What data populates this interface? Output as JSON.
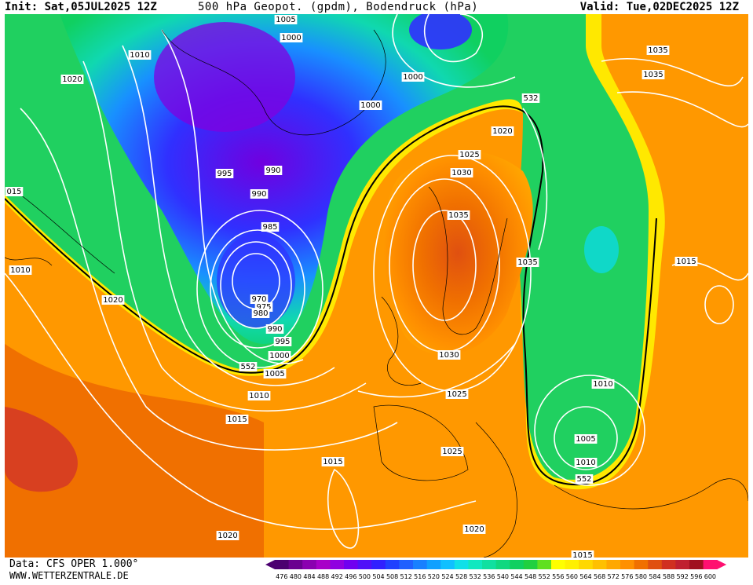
{
  "header": {
    "init": "Init: Sat,05JUL2025 12Z",
    "title": "500 hPa Geopot. (gpdm), Bodendruck (hPa)",
    "valid": "Valid: Tue,02DEC2025 12Z"
  },
  "footer": {
    "source": "Data: CFS OPER 1.000°",
    "site": "WWW.WETTERZENTRALE.DE"
  },
  "legend": {
    "values": [
      "476",
      "480",
      "484",
      "488",
      "492",
      "496",
      "500",
      "504",
      "508",
      "512",
      "516",
      "520",
      "524",
      "528",
      "532",
      "536",
      "540",
      "544",
      "548",
      "552",
      "556",
      "560",
      "564",
      "568",
      "572",
      "576",
      "580",
      "584",
      "588",
      "592",
      "596",
      "600"
    ],
    "colors": [
      "#4b0070",
      "#6a0090",
      "#8a00b0",
      "#a800c8",
      "#9000e0",
      "#7000f0",
      "#5010f8",
      "#3020ff",
      "#2040ff",
      "#2060ff",
      "#1880ff",
      "#10a0ff",
      "#10c0ff",
      "#10e0e8",
      "#10e8c0",
      "#10e0a0",
      "#10d880",
      "#10d060",
      "#20d040",
      "#60e020",
      "#ffff00",
      "#fff000",
      "#ffd800",
      "#ffc000",
      "#ffa800",
      "#ff9000",
      "#f07000",
      "#e05010",
      "#d03020",
      "#c02030",
      "#a01020",
      "#ff1070"
    ]
  },
  "pressure_labels": [
    {
      "t": "1005"
    },
    {
      "t": "1000"
    },
    {
      "t": "1010"
    },
    {
      "t": "1020"
    },
    {
      "t": "1000"
    },
    {
      "t": "1000"
    },
    {
      "t": "1035"
    },
    {
      "t": "1035"
    },
    {
      "t": "532"
    },
    {
      "t": "1020"
    },
    {
      "t": "1025"
    },
    {
      "t": "1030"
    },
    {
      "t": "995"
    },
    {
      "t": "990"
    },
    {
      "t": "990"
    },
    {
      "t": "015"
    },
    {
      "t": "985"
    },
    {
      "t": "1035"
    },
    {
      "t": "1035"
    },
    {
      "t": "1015"
    },
    {
      "t": "1010"
    },
    {
      "t": "1020"
    },
    {
      "t": "970"
    },
    {
      "t": "975"
    },
    {
      "t": "980"
    },
    {
      "t": "990"
    },
    {
      "t": "995"
    },
    {
      "t": "1000"
    },
    {
      "t": "552"
    },
    {
      "t": "1005"
    },
    {
      "t": "1010"
    },
    {
      "t": "1030"
    },
    {
      "t": "1025"
    },
    {
      "t": "1015"
    },
    {
      "t": "1010"
    },
    {
      "t": "1025"
    },
    {
      "t": "1005"
    },
    {
      "t": "1015"
    },
    {
      "t": "1010"
    },
    {
      "t": "552"
    },
    {
      "t": "1020"
    },
    {
      "t": "1020"
    },
    {
      "t": "1015"
    }
  ]
}
